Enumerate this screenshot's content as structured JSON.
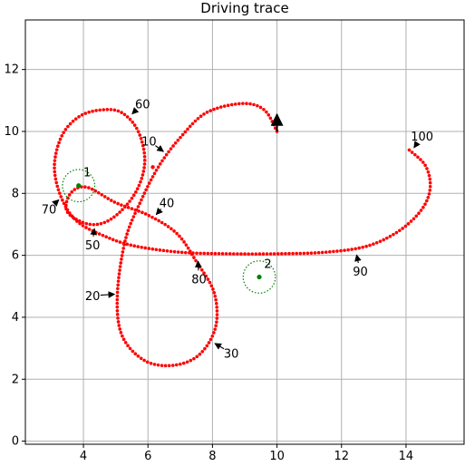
{
  "chart_data": {
    "type": "scatter",
    "title": "Driving trace",
    "xlabel": "",
    "ylabel": "",
    "xlim": [
      2.2,
      15.8
    ],
    "ylim": [
      -0.1,
      13.6
    ],
    "xticks": [
      4,
      6,
      8,
      10,
      12,
      14
    ],
    "yticks": [
      0,
      2,
      4,
      6,
      8,
      10,
      12
    ],
    "grid": true,
    "colors": {
      "trace": "#ff0000",
      "landmark": "#008000",
      "arrow": "#000000"
    },
    "trace": {
      "control_points": [
        [
          10.0,
          10.0
        ],
        [
          9.6,
          10.7
        ],
        [
          8.9,
          10.9
        ],
        [
          7.8,
          10.6
        ],
        [
          7.0,
          9.8
        ],
        [
          6.35,
          8.9
        ],
        [
          5.8,
          7.8
        ],
        [
          5.3,
          6.5
        ],
        [
          5.05,
          4.7
        ],
        [
          5.2,
          3.4
        ],
        [
          5.9,
          2.6
        ],
        [
          6.8,
          2.45
        ],
        [
          7.6,
          2.8
        ],
        [
          8.1,
          3.7
        ],
        [
          8.05,
          4.8
        ],
        [
          7.5,
          5.8
        ],
        [
          6.9,
          6.7
        ],
        [
          6.0,
          7.3
        ],
        [
          5.0,
          7.7
        ],
        [
          4.1,
          8.2
        ],
        [
          3.6,
          8.0
        ],
        [
          3.5,
          7.4
        ],
        [
          4.2,
          7.0
        ],
        [
          4.9,
          7.2
        ],
        [
          5.6,
          8.0
        ],
        [
          5.9,
          9.0
        ],
        [
          5.7,
          10.0
        ],
        [
          5.2,
          10.6
        ],
        [
          4.6,
          10.7
        ],
        [
          3.9,
          10.5
        ],
        [
          3.35,
          9.9
        ],
        [
          3.1,
          8.9
        ],
        [
          3.3,
          7.9
        ],
        [
          3.8,
          7.1
        ],
        [
          4.7,
          6.6
        ],
        [
          5.6,
          6.3
        ],
        [
          7.0,
          6.1
        ],
        [
          8.5,
          6.05
        ],
        [
          10.0,
          6.05
        ],
        [
          11.5,
          6.1
        ],
        [
          12.8,
          6.3
        ],
        [
          13.8,
          6.8
        ],
        [
          14.5,
          7.5
        ],
        [
          14.75,
          8.2
        ],
        [
          14.6,
          8.9
        ],
        [
          14.1,
          9.4
        ]
      ],
      "num_points": 400
    },
    "heading_arrow": {
      "from": [
        10.0,
        10.0
      ],
      "to": [
        10.0,
        10.55
      ]
    },
    "start_dot": [
      6.15,
      8.85
    ],
    "landmarks": [
      {
        "id": "1",
        "x": 3.85,
        "y": 8.25
      },
      {
        "id": "2",
        "x": 9.45,
        "y": 5.3
      }
    ],
    "landmark_radius": 0.5,
    "annotations": [
      {
        "text": "1",
        "x": 3.85,
        "y": 8.25,
        "tx": 4.0,
        "ty": 8.55,
        "arrow": false
      },
      {
        "text": "2",
        "x": 9.45,
        "y": 5.3,
        "tx": 9.6,
        "ty": 5.6,
        "arrow": false
      },
      {
        "text": "10",
        "x": 6.55,
        "y": 9.3,
        "tx": 5.8,
        "ty": 9.55,
        "arrow": true
      },
      {
        "text": "20",
        "x": 5.05,
        "y": 4.75,
        "tx": 4.05,
        "ty": 4.55,
        "arrow": true
      },
      {
        "text": "30",
        "x": 8.0,
        "y": 3.2,
        "tx": 8.35,
        "ty": 2.7,
        "arrow": true
      },
      {
        "text": "40",
        "x": 6.2,
        "y": 7.25,
        "tx": 6.35,
        "ty": 7.55,
        "arrow": true
      },
      {
        "text": "50",
        "x": 4.35,
        "y": 6.95,
        "tx": 4.05,
        "ty": 6.2,
        "arrow": true
      },
      {
        "text": "60",
        "x": 5.45,
        "y": 10.5,
        "tx": 5.6,
        "ty": 10.75,
        "arrow": true
      },
      {
        "text": "70",
        "x": 3.3,
        "y": 7.85,
        "tx": 2.7,
        "ty": 7.35,
        "arrow": true
      },
      {
        "text": "80",
        "x": 7.55,
        "y": 5.9,
        "tx": 7.35,
        "ty": 5.1,
        "arrow": true
      },
      {
        "text": "90",
        "x": 12.45,
        "y": 6.1,
        "tx": 12.35,
        "ty": 5.35,
        "arrow": true
      },
      {
        "text": "100",
        "x": 14.2,
        "y": 9.4,
        "tx": 14.15,
        "ty": 9.7,
        "arrow": true
      }
    ]
  }
}
